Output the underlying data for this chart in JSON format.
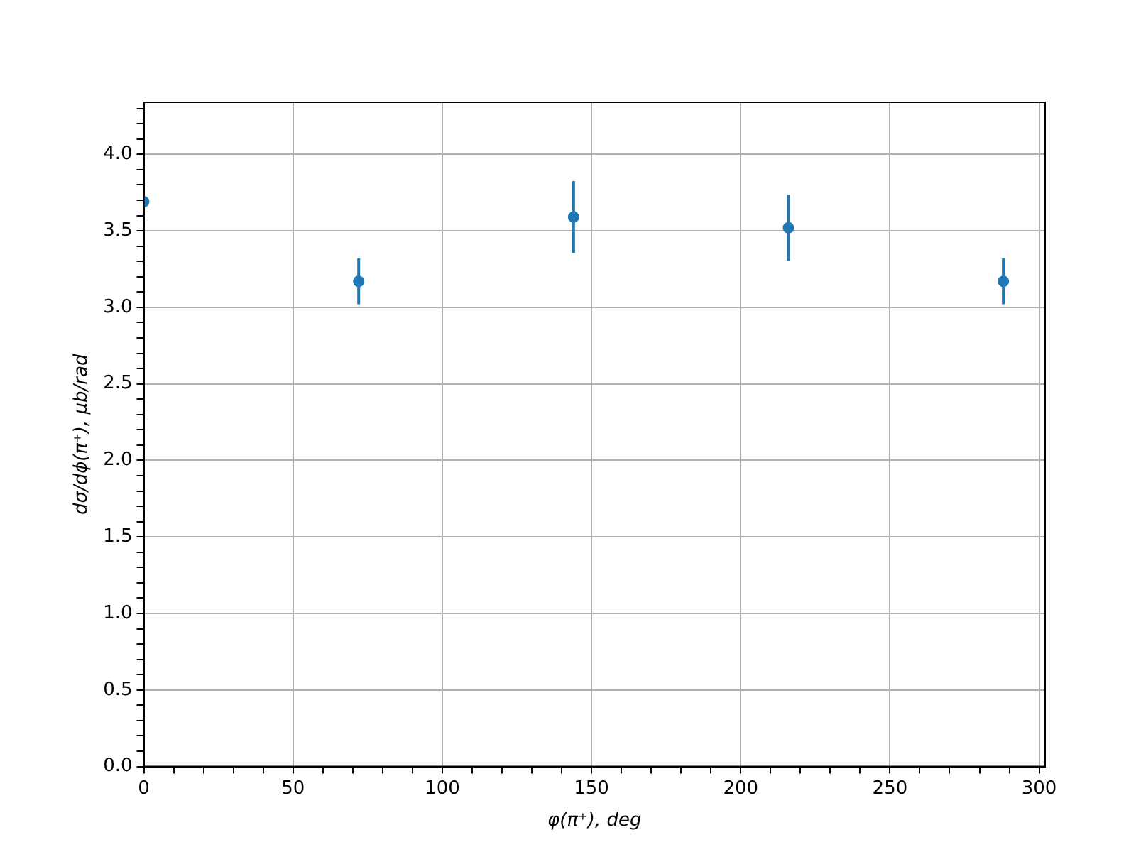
{
  "chart_data": {
    "type": "scatter",
    "xlabel": "φ(π⁺), deg",
    "ylabel": "dσ/dϕ(π⁺), μb/rad",
    "x": [
      0,
      72,
      144,
      216,
      288
    ],
    "series": [
      {
        "color": "#1f77b4",
        "values": [
          3.69,
          3.17,
          3.59,
          3.52,
          3.17
        ],
        "errors": [
          null,
          0.15,
          0.235,
          0.215,
          0.15
        ]
      }
    ],
    "xlim": [
      0,
      302
    ],
    "ylim": [
      0,
      4.34
    ],
    "xticks": [
      0,
      {
        "value": 10,
        "label": null
      },
      {
        "value": 20,
        "label": null
      },
      {
        "value": 30,
        "label": null
      },
      {
        "value": 40,
        "label": null
      },
      50,
      {
        "value": 60,
        "label": null
      },
      {
        "value": 70,
        "label": null
      },
      {
        "value": 80,
        "label": null
      },
      {
        "value": 90,
        "label": null
      },
      100,
      {
        "value": 110,
        "label": null
      },
      {
        "value": 120,
        "label": null
      },
      {
        "value": 130,
        "label": null
      },
      {
        "value": 140,
        "label": null
      },
      150,
      {
        "value": 160,
        "label": null
      },
      {
        "value": 170,
        "label": null
      },
      {
        "value": 180,
        "label": null
      },
      {
        "value": 190,
        "label": null
      },
      200,
      {
        "value": 210,
        "label": null
      },
      {
        "value": 220,
        "label": null
      },
      {
        "value": 230,
        "label": null
      },
      {
        "value": 240,
        "label": null
      },
      250,
      {
        "value": 260,
        "label": null
      },
      {
        "value": 270,
        "label": null
      },
      {
        "value": 280,
        "label": null
      },
      {
        "value": 290,
        "label": null
      },
      300
    ],
    "yticks": [
      {
        "value": 0,
        "label": "0.0"
      },
      {
        "value": 0.1,
        "label": null
      },
      {
        "value": 0.2,
        "label": null
      },
      {
        "value": 0.3,
        "label": null
      },
      {
        "value": 0.4,
        "label": null
      },
      {
        "value": 0.5,
        "label": "0.5"
      },
      {
        "value": 0.6,
        "label": null
      },
      {
        "value": 0.7,
        "label": null
      },
      {
        "value": 0.8,
        "label": null
      },
      {
        "value": 0.9,
        "label": null
      },
      {
        "value": 1,
        "label": "1.0"
      },
      {
        "value": 1.1,
        "label": null
      },
      {
        "value": 1.2,
        "label": null
      },
      {
        "value": 1.3,
        "label": null
      },
      {
        "value": 1.4,
        "label": null
      },
      {
        "value": 1.5,
        "label": "1.5"
      },
      {
        "value": 1.6,
        "label": null
      },
      {
        "value": 1.7,
        "label": null
      },
      {
        "value": 1.8,
        "label": null
      },
      {
        "value": 1.9,
        "label": null
      },
      {
        "value": 2,
        "label": "2.0"
      },
      {
        "value": 2.1,
        "label": null
      },
      {
        "value": 2.2,
        "label": null
      },
      {
        "value": 2.3,
        "label": null
      },
      {
        "value": 2.4,
        "label": null
      },
      {
        "value": 2.5,
        "label": "2.5"
      },
      {
        "value": 2.6,
        "label": null
      },
      {
        "value": 2.7,
        "label": null
      },
      {
        "value": 2.8,
        "label": null
      },
      {
        "value": 2.9,
        "label": null
      },
      {
        "value": 3,
        "label": "3.0"
      },
      {
        "value": 3.1,
        "label": null
      },
      {
        "value": 3.2,
        "label": null
      },
      {
        "value": 3.3,
        "label": null
      },
      {
        "value": 3.4,
        "label": null
      },
      {
        "value": 3.5,
        "label": "3.5"
      },
      {
        "value": 3.6,
        "label": null
      },
      {
        "value": 3.7,
        "label": null
      },
      {
        "value": 3.8,
        "label": null
      },
      {
        "value": 3.9,
        "label": null
      },
      {
        "value": 4,
        "label": "4.0"
      },
      {
        "value": 4.1,
        "label": null
      },
      {
        "value": 4.2,
        "label": null
      },
      {
        "value": 4.3,
        "label": null
      }
    ],
    "grid": true,
    "marker": "circle"
  }
}
